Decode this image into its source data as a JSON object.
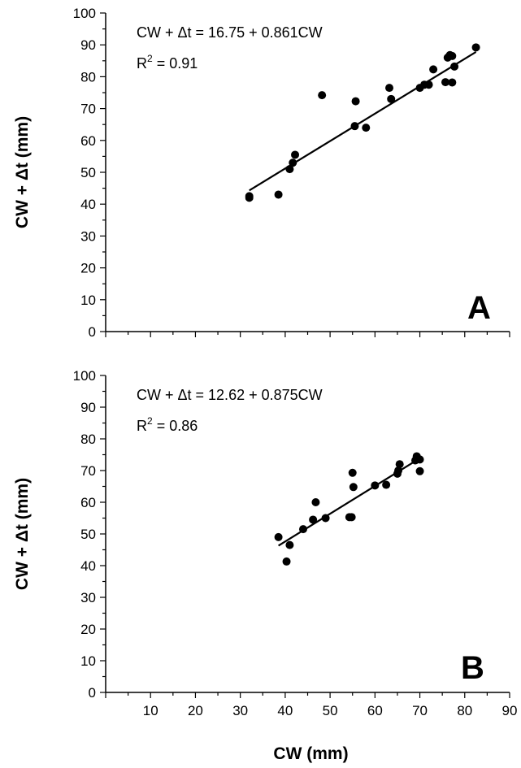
{
  "chart_data": [
    {
      "type": "scatter",
      "panel_label": "A",
      "equation": "CW + Δt = 16.75 + 0.861CW",
      "r2_prefix": "R",
      "r2_exp": "2",
      "r2_value": " = 0.91",
      "ylabel": "CW + Δt (mm)",
      "xlabel": "",
      "xlim": [
        0,
        90
      ],
      "ylim": [
        0,
        100
      ],
      "x_ticks": [],
      "y_ticks": [
        "0",
        "10",
        "20",
        "30",
        "40",
        "50",
        "60",
        "70",
        "80",
        "90",
        "100"
      ],
      "regression": {
        "intercept": 16.75,
        "slope": 0.861,
        "x_range": [
          32,
          82.5
        ]
      },
      "marker_color": "#000000",
      "points": [
        {
          "x": 32,
          "y": 42
        },
        {
          "x": 32,
          "y": 42.5
        },
        {
          "x": 38.5,
          "y": 43
        },
        {
          "x": 41,
          "y": 51
        },
        {
          "x": 41.7,
          "y": 53
        },
        {
          "x": 42.2,
          "y": 55.5
        },
        {
          "x": 48.2,
          "y": 74.2
        },
        {
          "x": 55.5,
          "y": 64.5
        },
        {
          "x": 55.7,
          "y": 72.3
        },
        {
          "x": 58,
          "y": 64
        },
        {
          "x": 63.2,
          "y": 76.5
        },
        {
          "x": 63.6,
          "y": 73
        },
        {
          "x": 70,
          "y": 76.5
        },
        {
          "x": 71,
          "y": 77.5
        },
        {
          "x": 72,
          "y": 77.5
        },
        {
          "x": 73,
          "y": 82.3
        },
        {
          "x": 75.7,
          "y": 78.3
        },
        {
          "x": 76.2,
          "y": 86
        },
        {
          "x": 76.7,
          "y": 86.8
        },
        {
          "x": 77.2,
          "y": 86.5
        },
        {
          "x": 77.2,
          "y": 78.2
        },
        {
          "x": 77.7,
          "y": 83.2
        },
        {
          "x": 82.5,
          "y": 89.2
        }
      ]
    },
    {
      "type": "scatter",
      "panel_label": "B",
      "equation": "CW + Δt = 12.62 + 0.875CW",
      "r2_prefix": "R",
      "r2_exp": "2",
      "r2_value": " = 0.86",
      "ylabel": "CW + Δt (mm)",
      "xlabel": "CW (mm)",
      "xlim": [
        0,
        90
      ],
      "ylim": [
        0,
        100
      ],
      "x_ticks": [
        "10",
        "20",
        "30",
        "40",
        "50",
        "60",
        "70",
        "80",
        "90"
      ],
      "y_ticks": [
        "0",
        "10",
        "20",
        "30",
        "40",
        "50",
        "60",
        "70",
        "80",
        "90",
        "100"
      ],
      "regression": {
        "intercept": 12.62,
        "slope": 0.875,
        "x_range": [
          38.5,
          70
        ]
      },
      "marker_color": "#000000",
      "points": [
        {
          "x": 38.5,
          "y": 49
        },
        {
          "x": 40.3,
          "y": 41.3
        },
        {
          "x": 41,
          "y": 46.5
        },
        {
          "x": 44,
          "y": 51.5
        },
        {
          "x": 46.2,
          "y": 54.5
        },
        {
          "x": 46.8,
          "y": 60
        },
        {
          "x": 49,
          "y": 55
        },
        {
          "x": 54.3,
          "y": 55.3
        },
        {
          "x": 54.8,
          "y": 55.3
        },
        {
          "x": 55,
          "y": 69.3
        },
        {
          "x": 55.2,
          "y": 64.8
        },
        {
          "x": 60,
          "y": 65.3
        },
        {
          "x": 62.5,
          "y": 65.5
        },
        {
          "x": 65,
          "y": 69
        },
        {
          "x": 65.2,
          "y": 70
        },
        {
          "x": 65.5,
          "y": 72
        },
        {
          "x": 69,
          "y": 73.2
        },
        {
          "x": 69.3,
          "y": 74.5
        },
        {
          "x": 70,
          "y": 73.5
        },
        {
          "x": 70,
          "y": 69.8
        }
      ]
    }
  ]
}
